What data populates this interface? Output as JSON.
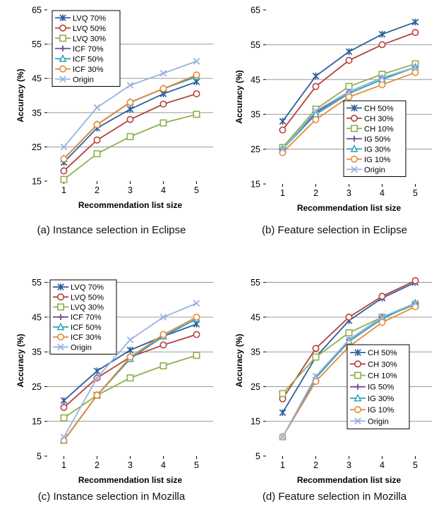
{
  "chart_data": [
    {
      "type": "line",
      "caption": "(a) Instance selection in Eclipse",
      "xlabel": "Recommendation list size",
      "ylabel": "Accuracy (%)",
      "x": [
        1,
        2,
        3,
        4,
        5
      ],
      "ylim": [
        15,
        65
      ],
      "yticks": [
        15,
        25,
        35,
        45,
        55,
        65
      ],
      "grid": true,
      "legend_position": "top-left",
      "series": [
        {
          "name": "LVQ 70%",
          "color": "#2e5f9e",
          "marker": "star",
          "values": [
            20.5,
            30.5,
            36,
            40.5,
            44
          ]
        },
        {
          "name": "LVQ 50%",
          "color": "#b5403c",
          "marker": "circle",
          "values": [
            18,
            27,
            33,
            37.5,
            40.5
          ]
        },
        {
          "name": "LVQ 30%",
          "color": "#8db04f",
          "marker": "square",
          "values": [
            15.5,
            23,
            28,
            32,
            34.5
          ]
        },
        {
          "name": "ICF 70%",
          "color": "#6e4a9a",
          "marker": "plus",
          "values": [
            21.5,
            31.5,
            38,
            42,
            45.5
          ]
        },
        {
          "name": "ICF 50%",
          "color": "#2aa3b8",
          "marker": "triangle",
          "values": [
            21.5,
            31.5,
            38,
            42,
            45.5
          ]
        },
        {
          "name": "ICF 30%",
          "color": "#e38a36",
          "marker": "circle",
          "values": [
            21.5,
            31.5,
            38,
            42,
            46
          ]
        },
        {
          "name": "Origin",
          "color": "#98b3de",
          "marker": "x",
          "values": [
            25,
            36.5,
            43,
            46.5,
            50
          ]
        }
      ]
    },
    {
      "type": "line",
      "caption": "(b) Feature selection in Eclipse",
      "xlabel": "Recommendation list size",
      "ylabel": "Accuracy (%)",
      "x": [
        1,
        2,
        3,
        4,
        5
      ],
      "ylim": [
        15,
        65
      ],
      "yticks": [
        15,
        25,
        35,
        45,
        55,
        65
      ],
      "grid": true,
      "legend_position": "bottom-right",
      "series": [
        {
          "name": "CH 50%",
          "color": "#2e5f9e",
          "marker": "star",
          "values": [
            33,
            46,
            53,
            58,
            61.5
          ]
        },
        {
          "name": "CH 30%",
          "color": "#b5403c",
          "marker": "circle",
          "values": [
            30.5,
            43,
            50.5,
            55,
            58.5
          ]
        },
        {
          "name": "CH 10%",
          "color": "#8db04f",
          "marker": "square",
          "values": [
            25.5,
            36.5,
            43,
            46.5,
            49.5
          ]
        },
        {
          "name": "IG  50%",
          "color": "#6e4a9a",
          "marker": "plus",
          "values": [
            25,
            35.5,
            41.5,
            45.5,
            48.5
          ]
        },
        {
          "name": "IG  30%",
          "color": "#2aa3b8",
          "marker": "triangle",
          "values": [
            25,
            35,
            41,
            45,
            48.5
          ]
        },
        {
          "name": "IG  10%",
          "color": "#e38a36",
          "marker": "circle",
          "values": [
            24,
            33.5,
            40,
            43.5,
            47
          ]
        },
        {
          "name": "Origin",
          "color": "#98b3de",
          "marker": "x",
          "values": [
            25,
            36,
            41.5,
            45.5,
            48.5
          ]
        }
      ]
    },
    {
      "type": "line",
      "caption": "(c) Instance selection in Mozilla",
      "xlabel": "Recommendation list size",
      "ylabel": "Accuracy (%)",
      "x": [
        1,
        2,
        3,
        4,
        5
      ],
      "ylim": [
        5,
        60
      ],
      "yticks": [
        5,
        15,
        25,
        35,
        45,
        55
      ],
      "grid": true,
      "legend_position": "top-left",
      "series": [
        {
          "name": "LVQ 70%",
          "color": "#2e5f9e",
          "marker": "star",
          "values": [
            21,
            29.5,
            35.5,
            39.5,
            43
          ]
        },
        {
          "name": "LVQ 50%",
          "color": "#b5403c",
          "marker": "circle",
          "values": [
            19,
            27.5,
            33.5,
            37,
            40
          ]
        },
        {
          "name": "LVQ 30%",
          "color": "#8db04f",
          "marker": "square",
          "values": [
            16,
            22.5,
            27.5,
            31,
            34
          ]
        },
        {
          "name": "ICF 70%",
          "color": "#6e4a9a",
          "marker": "plus",
          "values": [
            9.5,
            22.5,
            33,
            39.5,
            44.5
          ]
        },
        {
          "name": "ICF 50%",
          "color": "#2aa3b8",
          "marker": "triangle",
          "values": [
            9.5,
            22.5,
            33,
            39.5,
            44.5
          ]
        },
        {
          "name": "ICF 30%",
          "color": "#e38a36",
          "marker": "circle",
          "values": [
            9.5,
            22.5,
            33.5,
            40,
            45
          ]
        },
        {
          "name": "Origin",
          "color": "#98b3de",
          "marker": "x",
          "values": [
            10.5,
            27.5,
            38.5,
            45,
            49
          ]
        }
      ]
    },
    {
      "type": "line",
      "caption": "(d) Feature selection in Mozilla",
      "xlabel": "Recommendation list size",
      "ylabel": "Accuracy (%)",
      "x": [
        1,
        2,
        3,
        4,
        5
      ],
      "ylim": [
        5,
        60
      ],
      "yticks": [
        5,
        15,
        25,
        35,
        45,
        55
      ],
      "grid": true,
      "legend_position": "bottom-right",
      "series": [
        {
          "name": "CH 50%",
          "color": "#2e5f9e",
          "marker": "star",
          "values": [
            17.5,
            33.5,
            44,
            50.5,
            55
          ]
        },
        {
          "name": "CH 30%",
          "color": "#b5403c",
          "marker": "circle",
          "values": [
            21.5,
            36,
            45,
            51,
            55.5
          ]
        },
        {
          "name": "CH 10%",
          "color": "#8db04f",
          "marker": "square",
          "values": [
            23,
            33.5,
            40.5,
            45,
            48.5
          ]
        },
        {
          "name": "IG  50%",
          "color": "#6e4a9a",
          "marker": "plus",
          "values": [
            10.5,
            27.5,
            38.5,
            45,
            49
          ]
        },
        {
          "name": "IG  30%",
          "color": "#2aa3b8",
          "marker": "triangle",
          "values": [
            10.5,
            27.5,
            38,
            44.5,
            49
          ]
        },
        {
          "name": "IG  10%",
          "color": "#e38a36",
          "marker": "circle",
          "values": [
            10.5,
            26.5,
            36.5,
            43.5,
            48
          ]
        },
        {
          "name": "Origin",
          "color": "#98b3de",
          "marker": "x",
          "values": [
            10.5,
            28,
            38.5,
            45,
            49
          ]
        }
      ]
    }
  ]
}
